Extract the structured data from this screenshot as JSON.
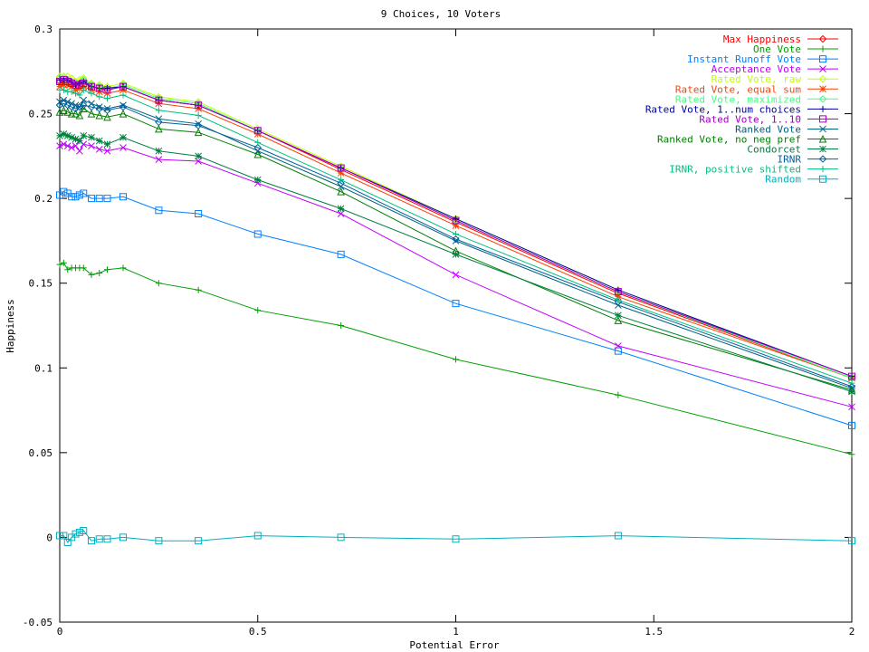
{
  "chart_data": {
    "type": "line",
    "title": "9 Choices, 10 Voters",
    "xlabel": "Potential Error",
    "ylabel": "Happiness",
    "xlim": [
      0,
      2
    ],
    "ylim": [
      -0.05,
      0.3
    ],
    "xticks": [
      0,
      0.5,
      1,
      1.5,
      2
    ],
    "xtick_labels": [
      "0",
      "0.5",
      "1",
      "1.5",
      "2"
    ],
    "yticks": [
      -0.05,
      0,
      0.05,
      0.1,
      0.15,
      0.2,
      0.25,
      0.3
    ],
    "ytick_labels": [
      "-0.05",
      "0",
      "0.05",
      "0.1",
      "0.15",
      "0.2",
      "0.25",
      "0.3"
    ],
    "grid": false,
    "legend_position": "top-right",
    "x": [
      0,
      0.01,
      0.02,
      0.03,
      0.04,
      0.05,
      0.06,
      0.08,
      0.1,
      0.12,
      0.16,
      0.25,
      0.35,
      0.5,
      0.71,
      1.0,
      1.41,
      2.0
    ],
    "series": [
      {
        "name": "Max Happiness",
        "color": "#ff0000",
        "marker": "diamond",
        "values": [
          0.269,
          0.269,
          0.27,
          0.268,
          0.266,
          0.267,
          0.268,
          0.266,
          0.265,
          0.264,
          0.266,
          0.258,
          0.255,
          0.24,
          0.217,
          0.186,
          0.144,
          0.094
        ]
      },
      {
        "name": "One Vote",
        "color": "#00a000",
        "marker": "plus",
        "values": [
          0.161,
          0.162,
          0.158,
          0.159,
          0.159,
          0.159,
          0.159,
          0.155,
          0.156,
          0.158,
          0.159,
          0.15,
          0.146,
          0.134,
          0.125,
          0.105,
          0.084,
          0.049
        ]
      },
      {
        "name": "Instant Runoff Vote",
        "color": "#0080ff",
        "marker": "square",
        "values": [
          0.202,
          0.204,
          0.203,
          0.201,
          0.201,
          0.202,
          0.203,
          0.2,
          0.2,
          0.2,
          0.201,
          0.193,
          0.191,
          0.179,
          0.167,
          0.138,
          0.11,
          0.066
        ]
      },
      {
        "name": "Acceptance Vote",
        "color": "#c000ff",
        "marker": "x",
        "values": [
          0.231,
          0.232,
          0.231,
          0.23,
          0.231,
          0.228,
          0.232,
          0.231,
          0.229,
          0.228,
          0.23,
          0.223,
          0.222,
          0.209,
          0.191,
          0.155,
          0.113,
          0.077
        ]
      },
      {
        "name": "Rated Vote, raw",
        "color": "#c0ff00",
        "marker": "diamond",
        "values": [
          0.272,
          0.272,
          0.272,
          0.271,
          0.269,
          0.27,
          0.271,
          0.268,
          0.267,
          0.266,
          0.268,
          0.26,
          0.257,
          0.241,
          0.219,
          0.188,
          0.146,
          0.095
        ]
      },
      {
        "name": "Rated Vote, equal sum",
        "color": "#ff4000",
        "marker": "star",
        "values": [
          0.266,
          0.267,
          0.267,
          0.266,
          0.264,
          0.265,
          0.266,
          0.264,
          0.263,
          0.262,
          0.264,
          0.256,
          0.253,
          0.238,
          0.215,
          0.184,
          0.142,
          0.094
        ]
      },
      {
        "name": "Rated Vote, maximized",
        "color": "#40ff80",
        "marker": "diamond",
        "values": [
          0.271,
          0.271,
          0.27,
          0.269,
          0.268,
          0.268,
          0.27,
          0.267,
          0.266,
          0.265,
          0.267,
          0.259,
          0.256,
          0.24,
          0.218,
          0.187,
          0.145,
          0.094
        ]
      },
      {
        "name": "Rated Vote, 1..num choices",
        "color": "#0000a0",
        "marker": "plus",
        "values": [
          0.27,
          0.27,
          0.27,
          0.269,
          0.267,
          0.268,
          0.269,
          0.266,
          0.265,
          0.265,
          0.266,
          0.258,
          0.255,
          0.24,
          0.218,
          0.188,
          0.146,
          0.095
        ]
      },
      {
        "name": "Rated Vote, 1..10",
        "color": "#a000c0",
        "marker": "square",
        "values": [
          0.269,
          0.27,
          0.269,
          0.268,
          0.267,
          0.267,
          0.268,
          0.266,
          0.265,
          0.264,
          0.266,
          0.258,
          0.255,
          0.24,
          0.218,
          0.187,
          0.145,
          0.095
        ]
      },
      {
        "name": "Ranked Vote",
        "color": "#006080",
        "marker": "x",
        "values": [
          0.257,
          0.258,
          0.257,
          0.256,
          0.255,
          0.254,
          0.258,
          0.256,
          0.254,
          0.253,
          0.255,
          0.247,
          0.244,
          0.228,
          0.207,
          0.175,
          0.137,
          0.088
        ]
      },
      {
        "name": "Ranked Vote, no neg pref",
        "color": "#008000",
        "marker": "triangle",
        "values": [
          0.251,
          0.252,
          0.251,
          0.25,
          0.25,
          0.249,
          0.253,
          0.25,
          0.249,
          0.248,
          0.25,
          0.241,
          0.239,
          0.226,
          0.204,
          0.169,
          0.128,
          0.087
        ]
      },
      {
        "name": "Condorcet",
        "color": "#008040",
        "marker": "star",
        "values": [
          0.237,
          0.238,
          0.237,
          0.236,
          0.235,
          0.234,
          0.237,
          0.236,
          0.234,
          0.232,
          0.236,
          0.228,
          0.225,
          0.211,
          0.194,
          0.167,
          0.131,
          0.086
        ]
      },
      {
        "name": "IRNR",
        "color": "#0060a0",
        "marker": "diamond",
        "values": [
          0.255,
          0.256,
          0.255,
          0.254,
          0.253,
          0.254,
          0.255,
          0.254,
          0.253,
          0.252,
          0.254,
          0.245,
          0.243,
          0.23,
          0.209,
          0.176,
          0.139,
          0.089
        ]
      },
      {
        "name": "IRNR, positive shifted",
        "color": "#00c080",
        "marker": "plus",
        "values": [
          0.264,
          0.264,
          0.263,
          0.263,
          0.262,
          0.261,
          0.264,
          0.262,
          0.26,
          0.259,
          0.261,
          0.252,
          0.249,
          0.233,
          0.211,
          0.179,
          0.14,
          0.091
        ]
      },
      {
        "name": "Random",
        "color": "#00b0c0",
        "marker": "square",
        "values": [
          0.001,
          0.001,
          -0.003,
          0.0,
          0.002,
          0.003,
          0.004,
          -0.002,
          -0.001,
          -0.001,
          0.0,
          -0.002,
          -0.002,
          0.001,
          0.0,
          -0.001,
          0.001,
          -0.002
        ]
      }
    ]
  }
}
